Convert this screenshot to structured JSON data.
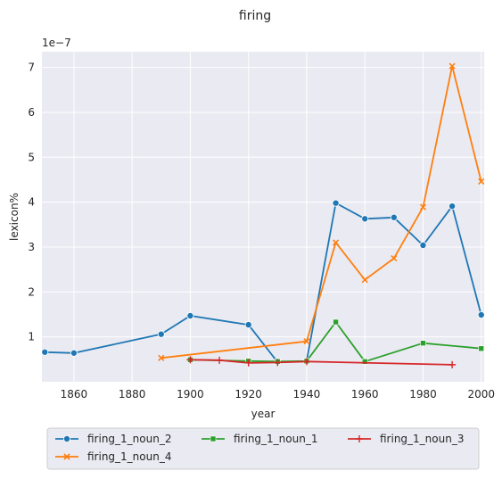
{
  "chart_data": {
    "type": "line",
    "title": "firing",
    "xlabel": "year",
    "ylabel": "lexicon%",
    "y_multiplier_label": "1e−7",
    "xlim": [
      1849,
      2001
    ],
    "ylim": [
      0.0,
      7.35
    ],
    "y_scale_exponent": -7,
    "x_ticks": [
      1860,
      1880,
      1900,
      1920,
      1940,
      1960,
      1980,
      2000
    ],
    "y_ticks": [
      1,
      2,
      3,
      4,
      5,
      6,
      7
    ],
    "grid": true,
    "legend_position": "bottom-center",
    "series": [
      {
        "name": "firing_1_noun_2",
        "color": "#1f77b4",
        "marker": "circle",
        "x": [
          1850,
          1860,
          1890,
          1900,
          1920,
          1930,
          1940,
          1950,
          1960,
          1970,
          1980,
          1990,
          2000
        ],
        "y": [
          0.66,
          0.64,
          1.06,
          1.47,
          1.27,
          0.44,
          0.46,
          3.98,
          3.63,
          3.66,
          3.04,
          3.91,
          1.49
        ]
      },
      {
        "name": "firing_1_noun_4",
        "color": "#ff7f0e",
        "marker": "x",
        "x": [
          1890,
          1940,
          1950,
          1960,
          1970,
          1980,
          1990,
          2000
        ],
        "y": [
          0.53,
          0.9,
          3.1,
          2.27,
          2.75,
          3.89,
          7.03,
          4.46
        ]
      },
      {
        "name": "firing_1_noun_1",
        "color": "#2ca02c",
        "marker": "square",
        "x": [
          1900,
          1920,
          1930,
          1940,
          1950,
          1960,
          1980,
          2000
        ],
        "y": [
          0.49,
          0.46,
          0.45,
          0.46,
          1.33,
          0.45,
          0.86,
          0.74
        ]
      },
      {
        "name": "firing_1_noun_3",
        "color": "#d62728",
        "marker": "plus",
        "x": [
          1900,
          1910,
          1920,
          1930,
          1940,
          1990
        ],
        "y": [
          0.49,
          0.48,
          0.42,
          0.43,
          0.45,
          0.38
        ]
      }
    ]
  }
}
